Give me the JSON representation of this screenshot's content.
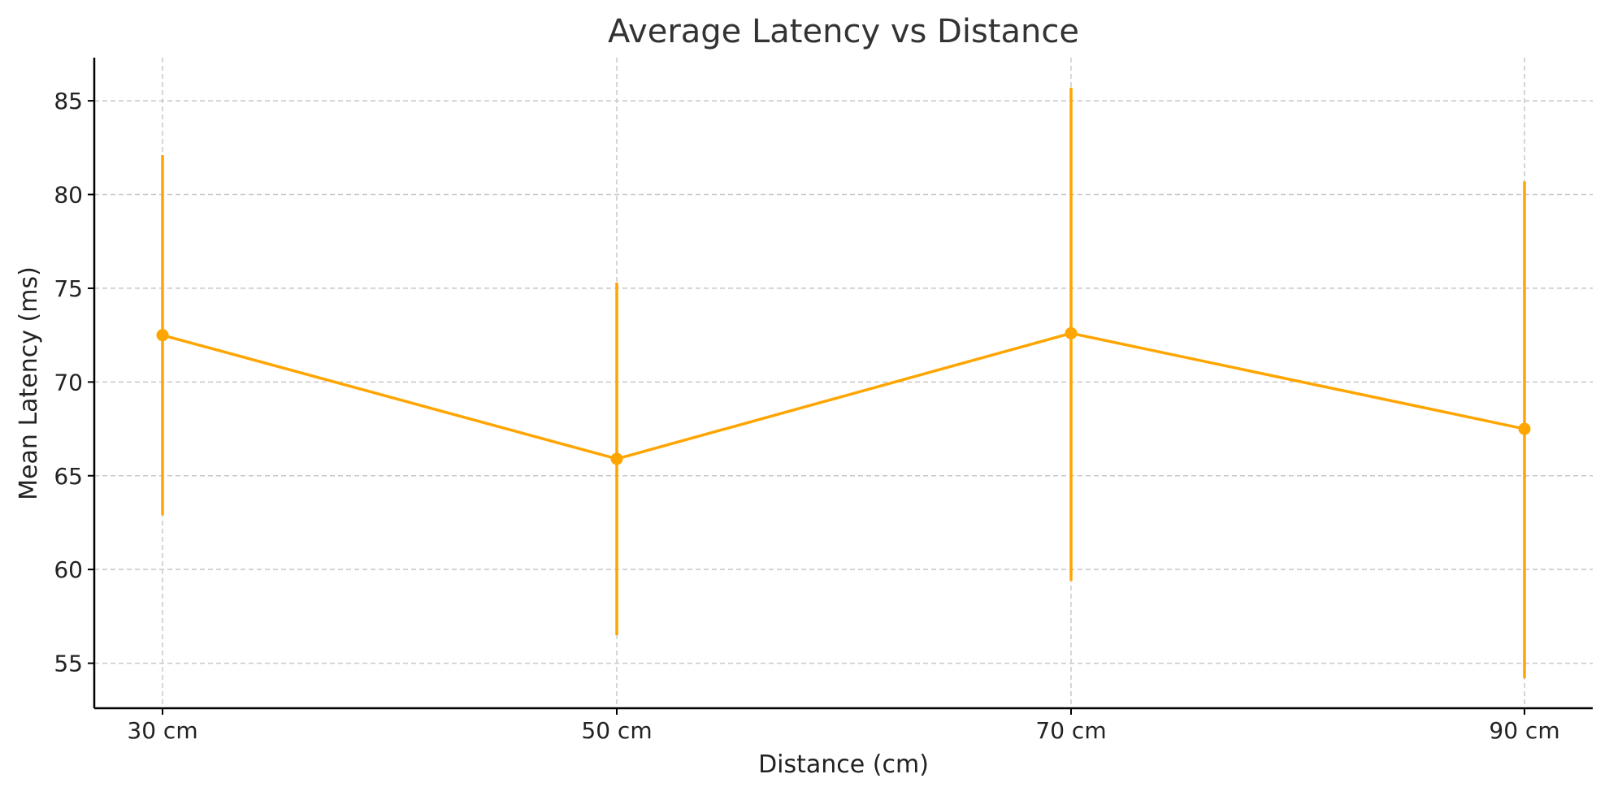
{
  "chart_data": {
    "type": "line",
    "title": "Average Latency vs Distance",
    "xlabel": "Distance (cm)",
    "ylabel": "Mean Latency (ms)",
    "categories": [
      "30 cm",
      "50 cm",
      "70 cm",
      "90 cm"
    ],
    "series": [
      {
        "values": [
          72.5,
          65.9,
          72.6,
          67.5
        ],
        "error_low": [
          62.9,
          56.5,
          59.4,
          54.2
        ],
        "error_high": [
          82.1,
          75.3,
          85.7,
          80.7
        ],
        "color": "#FFA500"
      }
    ],
    "yticks": [
      55,
      60,
      65,
      70,
      75,
      80,
      85
    ],
    "ylim": [
      52.6,
      87.3
    ],
    "grid": true,
    "legend": false
  }
}
